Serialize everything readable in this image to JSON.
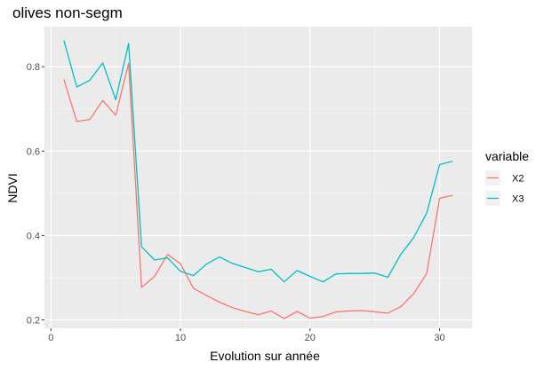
{
  "chart_data": {
    "type": "line",
    "title": "olives non-segm",
    "xlabel": "Evolution sur année",
    "ylabel": "NDVI",
    "xlim": [
      -0.5,
      32.5
    ],
    "ylim": [
      0.18,
      0.895
    ],
    "x_ticks": [
      0,
      10,
      20,
      30
    ],
    "x_tick_labels": [
      "0",
      "10",
      "20",
      "30"
    ],
    "y_ticks": [
      0.2,
      0.4,
      0.6,
      0.8
    ],
    "y_tick_labels": [
      "0.2",
      "0.4",
      "0.6",
      "0.8"
    ],
    "grid": true,
    "legend": {
      "title": "variable",
      "position": "right"
    },
    "x": [
      1,
      2,
      3,
      4,
      5,
      6,
      7,
      8,
      9,
      10,
      11,
      12,
      13,
      14,
      15,
      16,
      17,
      18,
      19,
      20,
      21,
      22,
      23,
      24,
      25,
      26,
      27,
      28,
      29,
      30,
      31
    ],
    "series": [
      {
        "name": "X2",
        "color": "#F8766D",
        "values": [
          0.77,
          0.67,
          0.675,
          0.72,
          0.685,
          0.808,
          0.277,
          0.303,
          0.355,
          0.333,
          0.275,
          0.258,
          0.242,
          0.229,
          0.22,
          0.212,
          0.221,
          0.203,
          0.22,
          0.204,
          0.208,
          0.219,
          0.221,
          0.222,
          0.219,
          0.216,
          0.231,
          0.262,
          0.31,
          0.488,
          0.495
        ]
      },
      {
        "name": "X3",
        "color": "#00BFC4",
        "values": [
          0.862,
          0.752,
          0.768,
          0.809,
          0.722,
          0.855,
          0.373,
          0.342,
          0.347,
          0.315,
          0.305,
          0.332,
          0.349,
          0.334,
          0.324,
          0.314,
          0.32,
          0.29,
          0.317,
          0.303,
          0.29,
          0.309,
          0.31,
          0.31,
          0.311,
          0.301,
          0.355,
          0.395,
          0.453,
          0.568,
          0.576
        ]
      }
    ]
  }
}
